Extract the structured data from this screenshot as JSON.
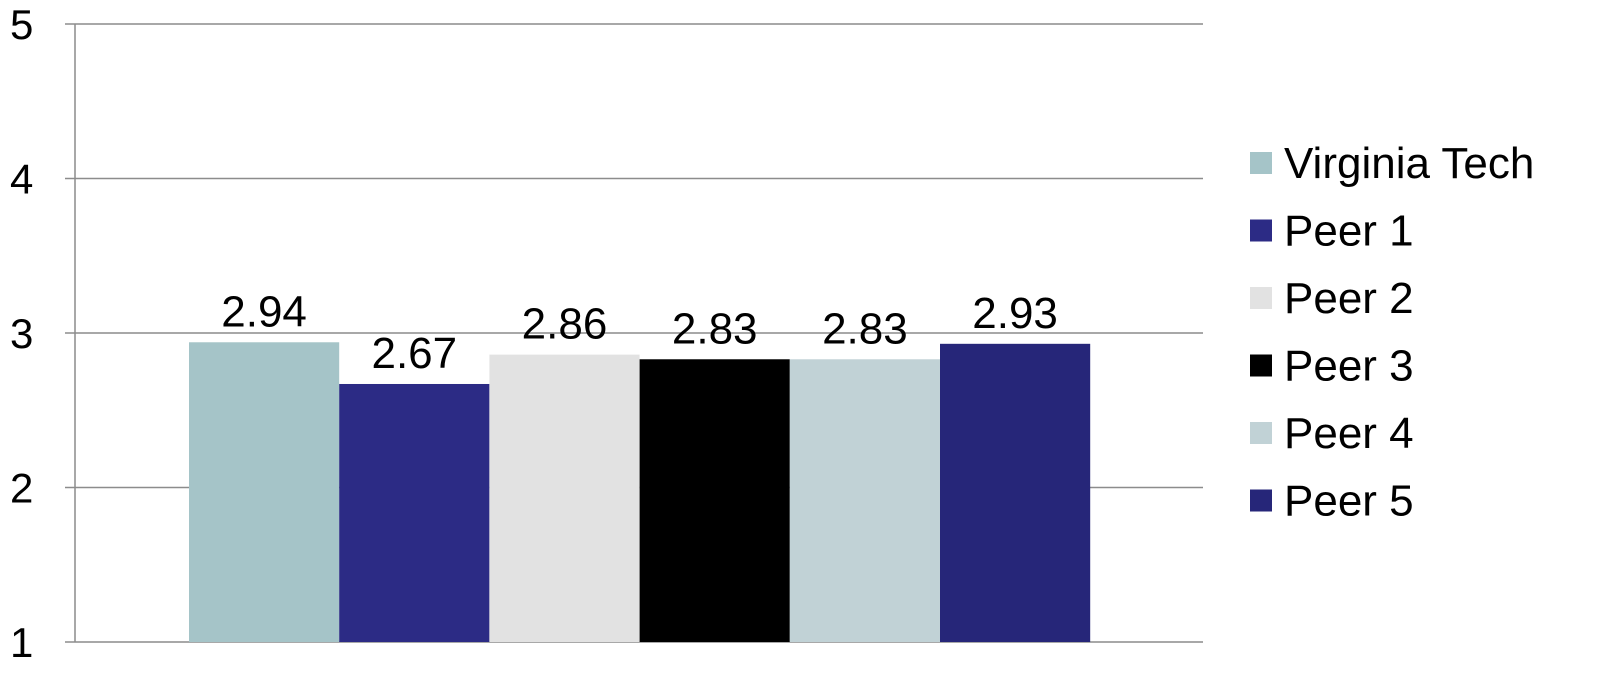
{
  "chart_data": {
    "type": "bar",
    "categories": [
      ""
    ],
    "series": [
      {
        "name": "Virginia Tech",
        "values": [
          2.94
        ],
        "color": "#a5c4c8"
      },
      {
        "name": "Peer 1",
        "values": [
          2.67
        ],
        "color": "#2c2b85"
      },
      {
        "name": "Peer 2",
        "values": [
          2.86
        ],
        "color": "#e2e2e2"
      },
      {
        "name": "Peer 3",
        "values": [
          2.83
        ],
        "color": "#000000"
      },
      {
        "name": "Peer 4",
        "values": [
          2.83
        ],
        "color": "#c1d2d6"
      },
      {
        "name": "Peer 5",
        "values": [
          2.93
        ],
        "color": "#262679"
      }
    ],
    "data_labels": [
      "2.94",
      "2.67",
      "2.86",
      "2.83",
      "2.83",
      "2.93"
    ],
    "ylim": [
      1,
      5
    ],
    "yticks": [
      "1",
      "2",
      "3",
      "4",
      "5"
    ],
    "grid": true,
    "legend": "right",
    "title": "",
    "xlabel": "",
    "ylabel": ""
  }
}
